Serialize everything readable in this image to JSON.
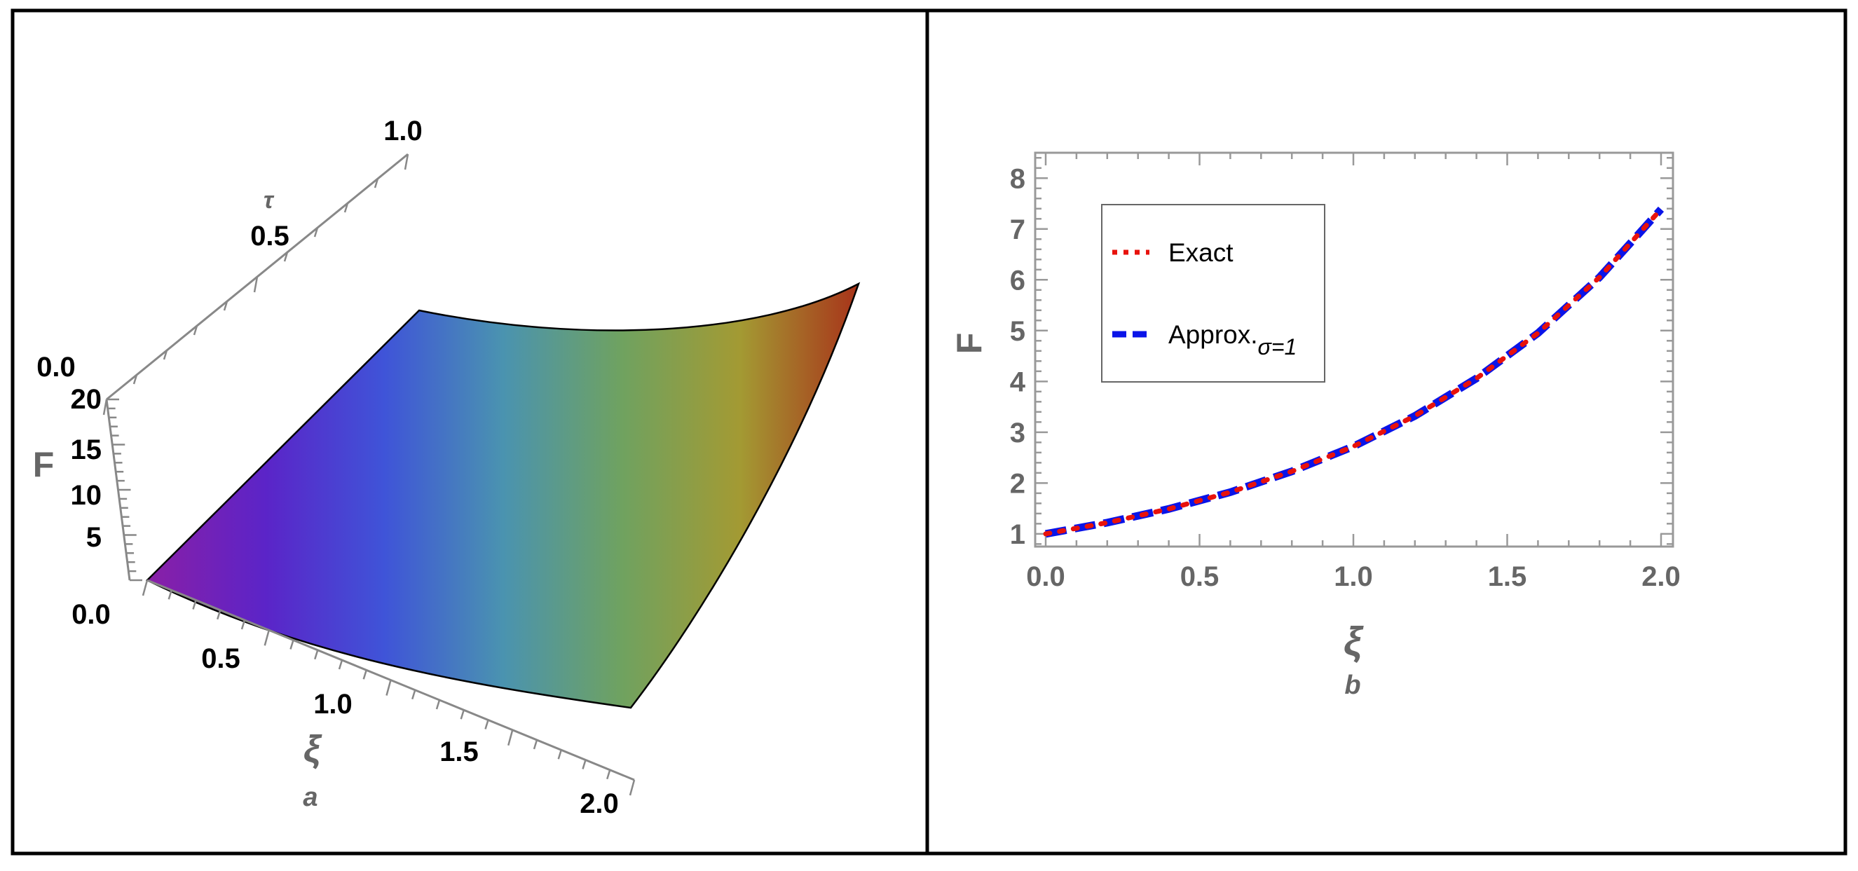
{
  "chart_data": [
    {
      "type": "surface",
      "panel_label": "a",
      "xlabel": "ξ",
      "ylabel": "τ",
      "zlabel": "F",
      "xlim": [
        0,
        2
      ],
      "ylim": [
        0,
        1
      ],
      "zlim": [
        0,
        20
      ],
      "x_ticks": [
        "0.0",
        "0.5",
        "1.0",
        "1.5",
        "2.0"
      ],
      "y_ticks": [
        "0.0",
        "0.5",
        "1.0"
      ],
      "z_ticks": [
        "5",
        "10",
        "15",
        "20"
      ],
      "colormap": [
        "#8a1fa6",
        "#5b24c8",
        "#3f54d8",
        "#4a93b0",
        "#6fa260",
        "#a39a33",
        "#a8331a"
      ],
      "surface_corners": [
        {
          "x": 0,
          "y": 0,
          "z": 1
        },
        {
          "x": 2,
          "y": 0,
          "z": 8.2
        },
        {
          "x": 0,
          "y": 1,
          "z": 2.7
        },
        {
          "x": 2,
          "y": 1,
          "z": 20
        }
      ]
    },
    {
      "type": "line",
      "panel_label": "b",
      "xlabel": "ξ",
      "ylabel": "F",
      "xlim": [
        0,
        2
      ],
      "ylim": [
        0.75,
        8.5
      ],
      "x_ticks": [
        "0.0",
        "0.5",
        "1.0",
        "1.5",
        "2.0"
      ],
      "y_ticks": [
        "1",
        "2",
        "3",
        "4",
        "5",
        "6",
        "7",
        "8"
      ],
      "legend_placement": "top-left",
      "series": [
        {
          "name": "Exact",
          "style": "dotted",
          "color": "#e8120c",
          "x": [
            0,
            0.2,
            0.4,
            0.6,
            0.8,
            1.0,
            1.2,
            1.4,
            1.6,
            1.8,
            2.0
          ],
          "y": [
            1.0,
            1.22,
            1.49,
            1.82,
            2.23,
            2.72,
            3.32,
            4.06,
            4.95,
            6.05,
            7.39
          ]
        },
        {
          "name": "Approx.",
          "name_subscript": "σ=1",
          "style": "dashed",
          "color": "#0a14e8",
          "x": [
            0,
            0.2,
            0.4,
            0.6,
            0.8,
            1.0,
            1.2,
            1.4,
            1.6,
            1.8,
            2.0
          ],
          "y": [
            1.0,
            1.22,
            1.49,
            1.82,
            2.23,
            2.72,
            3.32,
            4.06,
            4.95,
            6.05,
            7.39
          ]
        }
      ]
    }
  ]
}
